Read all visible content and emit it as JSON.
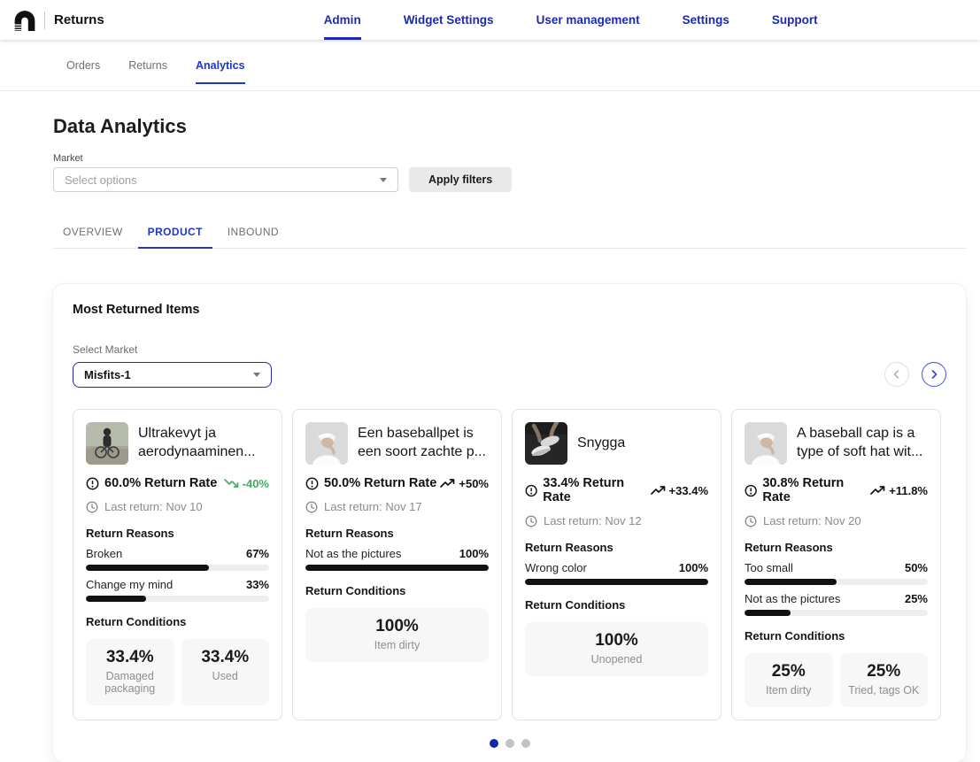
{
  "header": {
    "logo_text": "Returns",
    "nav": [
      {
        "label": "Admin"
      },
      {
        "label": "Widget Settings"
      },
      {
        "label": "User management"
      },
      {
        "label": "Settings"
      },
      {
        "label": "Support"
      }
    ]
  },
  "sub_nav": [
    {
      "label": "Orders"
    },
    {
      "label": "Returns"
    },
    {
      "label": "Analytics"
    }
  ],
  "page": {
    "title": "Data Analytics",
    "filters": {
      "market_label": "Market",
      "market_placeholder": "Select options",
      "apply_button": "Apply filters"
    },
    "tabs": [
      {
        "label": "OVERVIEW"
      },
      {
        "label": "PRODUCT"
      },
      {
        "label": "INBOUND"
      }
    ]
  },
  "panel": {
    "title": "Most Returned Items",
    "market_select": {
      "label": "Select Market",
      "value": "Misfits-1"
    },
    "section_labels": {
      "reasons": "Return Reasons",
      "conditions": "Return Conditions"
    },
    "products": [
      {
        "title": "Ultrakevyt ja aerodynaaminen...",
        "image": "cyclist-photo",
        "return_rate": "60.0% Return Rate",
        "trend": "-40%",
        "trend_direction": "down",
        "last_return": "Last return: Nov 10",
        "reasons": [
          {
            "label": "Broken",
            "pct": "67%",
            "value": 67
          },
          {
            "label": "Change my mind",
            "pct": "33%",
            "value": 33
          }
        ],
        "conditions": [
          {
            "pct": "33.4%",
            "label": "Damaged packaging"
          },
          {
            "pct": "33.4%",
            "label": "Used"
          }
        ]
      },
      {
        "title": "Een baseballpet is een soort zachte p...",
        "image": "white-cap-photo",
        "return_rate": "50.0% Return Rate",
        "trend": "+50%",
        "trend_direction": "up",
        "last_return": "Last return: Nov 17",
        "reasons": [
          {
            "label": "Not as the pictures",
            "pct": "100%",
            "value": 100
          }
        ],
        "conditions": [
          {
            "pct": "100%",
            "label": "Item dirty"
          }
        ]
      },
      {
        "title": "Snygga",
        "image": "sneakers-photo",
        "return_rate": "33.4% Return Rate",
        "trend": "+33.4%",
        "trend_direction": "up",
        "last_return": "Last return: Nov 12",
        "reasons": [
          {
            "label": "Wrong color",
            "pct": "100%",
            "value": 100
          }
        ],
        "conditions": [
          {
            "pct": "100%",
            "label": "Unopened"
          }
        ]
      },
      {
        "title": "A baseball cap is a type of soft hat wit...",
        "image": "white-cap-photo",
        "return_rate": "30.8% Return Rate",
        "trend": "+11.8%",
        "trend_direction": "up",
        "last_return": "Last return: Nov 20",
        "reasons": [
          {
            "label": "Too small",
            "pct": "50%",
            "value": 50
          },
          {
            "label": "Not as the pictures",
            "pct": "25%",
            "value": 25
          }
        ],
        "conditions": [
          {
            "pct": "25%",
            "label": "Item dirty"
          },
          {
            "pct": "25%",
            "label": "Tried, tags OK"
          }
        ]
      }
    ],
    "pagination": {
      "dots": 3,
      "active_index": 0
    }
  },
  "colors": {
    "nav_blue": "#1b2ab0",
    "tab_active_blue": "#1f35c8",
    "trend_down_green": "#43ab66",
    "bar_fill": "#111111",
    "active_dot": "#1227af"
  }
}
